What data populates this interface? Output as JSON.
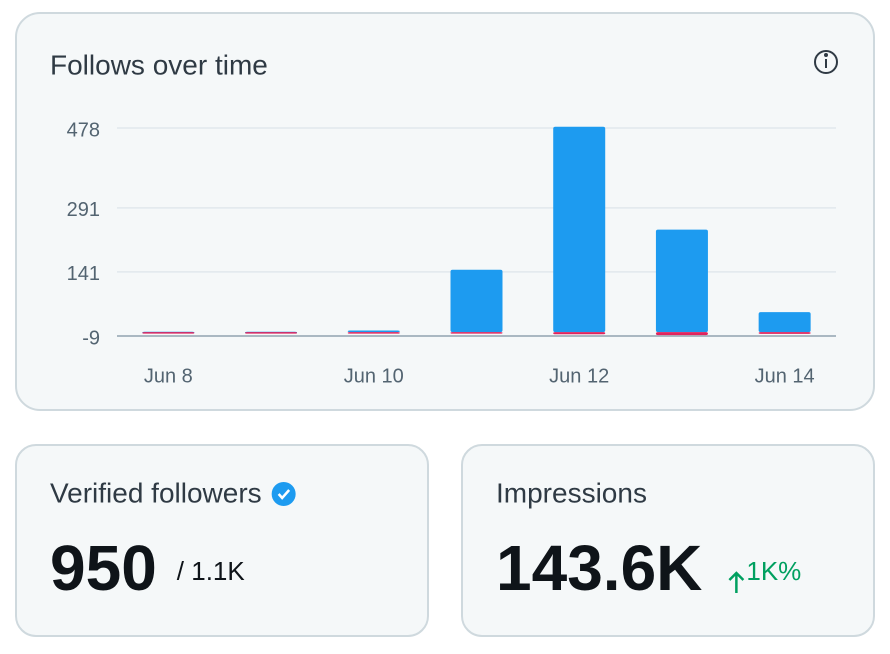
{
  "chart_data": {
    "type": "bar",
    "title": "Follows over time",
    "categories": [
      "Jun 8",
      null,
      "Jun 10",
      null,
      "Jun 12",
      null,
      "Jun 14"
    ],
    "series": [
      {
        "color": "#1d9bf0",
        "values": [
          1,
          1,
          4,
          146,
          481,
          240,
          47
        ]
      },
      {
        "color": "#e0245e",
        "values": [
          -1,
          -2,
          0,
          -1,
          -5,
          -7,
          -4
        ]
      }
    ],
    "ylim": [
      -9,
      478
    ],
    "yticks": [
      -9,
      141,
      291,
      478
    ],
    "grid": true
  },
  "cards": [
    {
      "title": "Verified followers",
      "value": "950",
      "total": "/ 1.1K"
    },
    {
      "title": "Impressions",
      "value": "143.6K",
      "change": "1K%"
    }
  ]
}
